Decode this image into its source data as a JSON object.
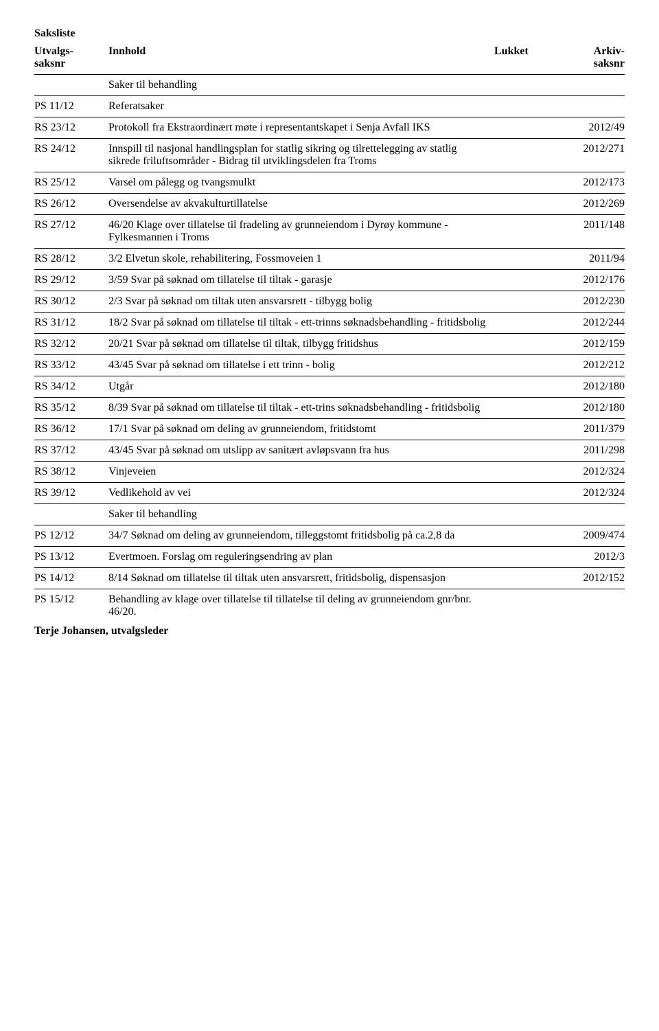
{
  "title": "Saksliste",
  "header": {
    "col1a": "Utvalgs-",
    "col1b": "saksnr",
    "col2": "Innhold",
    "col3": "Lukket",
    "col4a": "Arkiv-",
    "col4b": "saksnr"
  },
  "section1": "Saker til behandling",
  "rows": [
    {
      "code": "PS 11/12",
      "desc": "Referatsaker",
      "arkiv": ""
    },
    {
      "code": "RS 23/12",
      "desc": "Protokoll fra Ekstraordinært møte i representantskapet i Senja Avfall IKS",
      "arkiv": "2012/49"
    },
    {
      "code": "RS 24/12",
      "desc": "Innspill til nasjonal handlingsplan for statlig sikring og tilrettelegging av statlig sikrede friluftsområder - Bidrag til utviklingsdelen fra Troms",
      "arkiv": "2012/271"
    },
    {
      "code": "RS 25/12",
      "desc": "Varsel om pålegg og tvangsmulkt",
      "arkiv": "2012/173"
    },
    {
      "code": "RS 26/12",
      "desc": "Oversendelse av akvakulturtillatelse",
      "arkiv": "2012/269"
    },
    {
      "code": "RS 27/12",
      "desc": "46/20 Klage over tillatelse til fradeling av grunneiendom i Dyrøy kommune - Fylkesmannen i Troms",
      "arkiv": "2011/148"
    },
    {
      "code": "RS 28/12",
      "desc": "3/2 Elvetun skole, rehabilitering, Fossmoveien 1",
      "arkiv": "2011/94"
    },
    {
      "code": "RS 29/12",
      "desc": "3/59 Svar på søknad om tillatelse til tiltak - garasje",
      "arkiv": "2012/176"
    },
    {
      "code": "RS 30/12",
      "desc": "2/3 Svar på søknad om tiltak uten ansvarsrett - tilbygg bolig",
      "arkiv": "2012/230"
    },
    {
      "code": "RS 31/12",
      "desc": "18/2 Svar på søknad om tillatelse til tiltak - ett-trinns søknadsbehandling - fritidsbolig",
      "arkiv": "2012/244"
    },
    {
      "code": "RS 32/12",
      "desc": "20/21 Svar på søknad om tillatelse til tiltak, tilbygg fritidshus",
      "arkiv": "2012/159"
    },
    {
      "code": "RS 33/12",
      "desc": "43/45 Svar på søknad om tillatelse i ett trinn - bolig",
      "arkiv": "2012/212"
    },
    {
      "code": "RS 34/12",
      "desc": "Utgår",
      "arkiv": "2012/180"
    },
    {
      "code": "RS 35/12",
      "desc": "8/39 Svar på søknad om tillatelse til tiltak - ett-trins søknadsbehandling - fritidsbolig",
      "arkiv": "2012/180"
    },
    {
      "code": "RS 36/12",
      "desc": "17/1 Svar på søknad om deling av grunneiendom, fritidstomt",
      "arkiv": "2011/379"
    },
    {
      "code": "RS 37/12",
      "desc": "43/45 Svar på søknad om utslipp av sanitært avløpsvann fra hus",
      "arkiv": "2011/298"
    },
    {
      "code": "RS 38/12",
      "desc": "Vinjeveien",
      "arkiv": "2012/324"
    },
    {
      "code": "RS 39/12",
      "desc": "Vedlikehold av vei",
      "arkiv": "2012/324"
    }
  ],
  "section2": "Saker til behandling",
  "rows2": [
    {
      "code": "PS 12/12",
      "desc": "34/7 Søknad om deling av grunneiendom, tilleggstomt fritidsbolig på ca.2,8 da",
      "arkiv": "2009/474"
    },
    {
      "code": "PS 13/12",
      "desc": "Evertmoen. Forslag om reguleringsendring av plan",
      "arkiv": "2012/3"
    },
    {
      "code": "PS 14/12",
      "desc": "8/14 Søknad om tillatelse til tiltak uten ansvarsrett, fritidsbolig, dispensasjon",
      "arkiv": "2012/152"
    }
  ],
  "finalRow": {
    "code": "PS 15/12",
    "desc": "Behandling av klage over tillatelse til tillatelse til deling av grunneiendom gnr/bnr. 46/20.",
    "arkiv": ""
  },
  "signature": "Terje Johansen, utvalgsleder"
}
